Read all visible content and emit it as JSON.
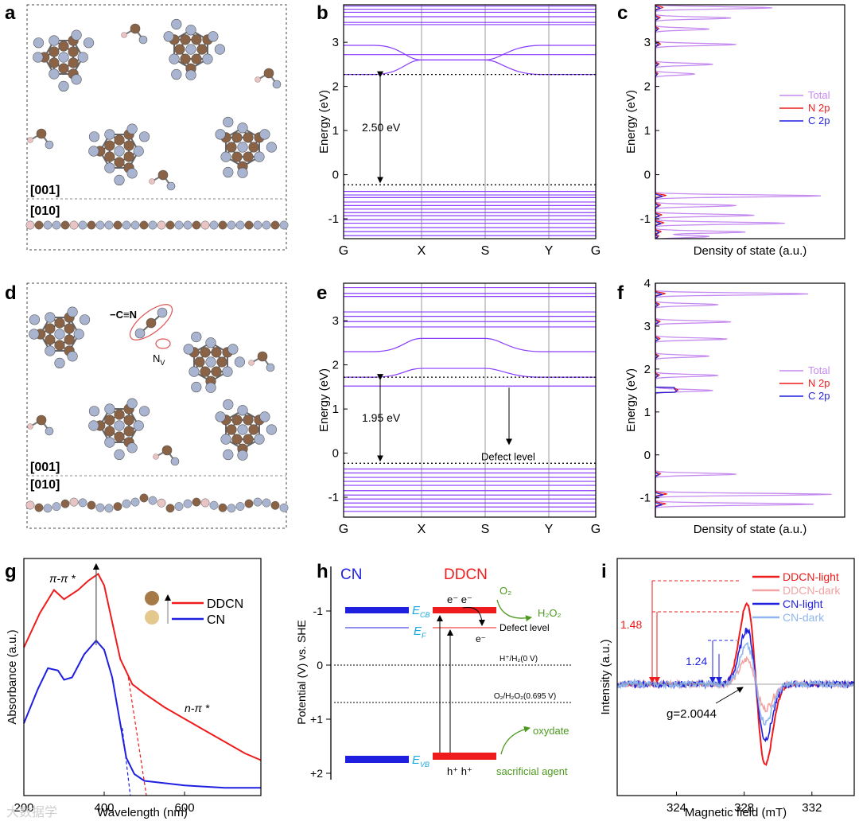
{
  "panel_labels": {
    "a": "a",
    "b": "b",
    "c": "c",
    "d": "d",
    "e": "e",
    "f": "f",
    "g": "g",
    "h": "h",
    "i": "i"
  },
  "colors": {
    "purple": "#8a3cff",
    "purple_light": "#c58af0",
    "red": "#ee1c1c",
    "blue": "#1f1fe0",
    "red_light": "#f2a3a3",
    "blue_light": "#8fb6ee",
    "carbon": "#8a6246",
    "nitrogen": "#a9b4d0",
    "hydrogen": "#e8c4c4",
    "cyan_text": "#1ba7df",
    "green_text": "#4d9a1f"
  },
  "panel_a": {
    "dir1": "[001]",
    "dir2": "[010]"
  },
  "panel_d": {
    "dir1": "[001]",
    "dir2": "[010]",
    "cyano": "−C≡N",
    "nv": "N",
    "nv_sub": "V"
  },
  "chart_data": [
    {
      "panel": "b",
      "type": "line",
      "subtype": "band_structure",
      "ylabel": "Energy (eV)",
      "x_ticks": [
        "G",
        "X",
        "S",
        "Y",
        "G"
      ],
      "y_ticks": [
        "-1",
        "0",
        "1",
        "2",
        "3"
      ],
      "ylim": [
        -1.45,
        3.85
      ],
      "gap_label": "2.50 eV",
      "vbm": -0.23,
      "cbm": 2.27,
      "flat_bands": [
        3.82,
        3.75,
        3.68,
        3.58,
        3.45,
        3.4,
        2.72,
        -0.38,
        -0.46,
        -0.52,
        -0.62,
        -0.7,
        -0.78,
        -0.86,
        -0.93,
        -1.02,
        -1.1,
        -1.2,
        -1.29,
        -1.38
      ],
      "dispersive_bands": [
        {
          "ends": 2.93,
          "mid": 2.6
        },
        {
          "ends": 2.27,
          "mid": 2.6
        }
      ]
    },
    {
      "panel": "c",
      "type": "line",
      "subtype": "density_of_states",
      "xlabel": "Density of state (a.u.)",
      "ylabel": "Energy (eV)",
      "y_ticks": [
        "-1",
        "0",
        "1",
        "2",
        "3"
      ],
      "ylim": [
        -1.45,
        3.85
      ],
      "legend": [
        "Total",
        "N 2p",
        "C 2p"
      ],
      "total_peaks": [
        [
          3.78,
          0.65
        ],
        [
          3.55,
          0.42
        ],
        [
          3.3,
          0.3
        ],
        [
          2.95,
          0.45
        ],
        [
          2.5,
          0.32
        ],
        [
          2.28,
          0.22
        ],
        [
          -0.48,
          0.92
        ],
        [
          -0.7,
          0.45
        ],
        [
          -0.92,
          0.55
        ],
        [
          -1.1,
          0.72
        ],
        [
          -1.3,
          0.5
        ],
        [
          -1.4,
          0.3
        ]
      ]
    },
    {
      "panel": "e",
      "type": "line",
      "subtype": "band_structure",
      "ylabel": "Energy (eV)",
      "x_ticks": [
        "G",
        "X",
        "S",
        "Y",
        "G"
      ],
      "y_ticks": [
        "-1",
        "0",
        "1",
        "2",
        "3"
      ],
      "ylim": [
        -1.45,
        3.85
      ],
      "gap_label": "1.95 eV",
      "defect_label": "Defect level",
      "vbm": -0.23,
      "cbm": 1.72,
      "defect_band": 1.52,
      "flat_bands": [
        3.75,
        3.62,
        3.55,
        3.2,
        3.1,
        2.98,
        2.86,
        1.52,
        -0.36,
        -0.45,
        -0.55,
        -0.64,
        -0.73,
        -0.85,
        -0.95,
        -1.04,
        -1.13,
        -1.22,
        -1.32
      ],
      "dispersive_bands": [
        {
          "ends": 2.3,
          "mid": 2.6
        },
        {
          "ends": 1.72,
          "mid": 1.92
        }
      ]
    },
    {
      "panel": "f",
      "type": "line",
      "subtype": "density_of_states",
      "xlabel": "Density of state (a.u.)",
      "ylabel": "Energy (eV)",
      "y_ticks": [
        "-1",
        "0",
        "1",
        "2",
        "3",
        "4"
      ],
      "ylim": [
        -1.45,
        4.0
      ],
      "legend": [
        "Total",
        "N 2p",
        "C 2p"
      ],
      "total_peaks": [
        [
          3.75,
          0.85
        ],
        [
          3.5,
          0.35
        ],
        [
          3.1,
          0.42
        ],
        [
          2.7,
          0.4
        ],
        [
          2.3,
          0.3
        ],
        [
          1.85,
          0.35
        ],
        [
          1.5,
          0.32
        ],
        [
          -0.45,
          0.45
        ],
        [
          -0.92,
          0.98
        ],
        [
          -1.15,
          0.88
        ]
      ]
    },
    {
      "panel": "g",
      "type": "line",
      "xlabel": "Wavelength (nm)",
      "ylabel": "Absorbance (a.u.)",
      "x_ticks": [
        "200",
        "400",
        "600"
      ],
      "xlim": [
        200,
        790
      ],
      "series": [
        {
          "name": "DDCN",
          "x": [
            200,
            240,
            275,
            300,
            335,
            360,
            385,
            400,
            420,
            440,
            470,
            500,
            550,
            600,
            650,
            700,
            750,
            790
          ],
          "y": [
            0.63,
            0.78,
            0.88,
            0.84,
            0.88,
            0.92,
            0.95,
            0.9,
            0.74,
            0.58,
            0.47,
            0.43,
            0.37,
            0.32,
            0.27,
            0.22,
            0.17,
            0.14
          ]
        },
        {
          "name": "CN",
          "x": [
            200,
            235,
            260,
            285,
            300,
            320,
            350,
            380,
            400,
            420,
            440,
            455,
            475,
            500,
            550,
            600,
            650,
            700,
            790
          ],
          "y": [
            0.3,
            0.45,
            0.54,
            0.53,
            0.49,
            0.5,
            0.6,
            0.66,
            0.62,
            0.5,
            0.3,
            0.15,
            0.08,
            0.05,
            0.04,
            0.03,
            0.025,
            0.02,
            0.02
          ]
        }
      ],
      "annotations": [
        "π-π *",
        "n-π *"
      ]
    },
    {
      "panel": "i",
      "type": "line",
      "xlabel": "Magnetic field (mT)",
      "ylabel": "Intensity (a.u.)",
      "x_ticks": [
        "324",
        "328",
        "332"
      ],
      "xlim": [
        320.5,
        334.5
      ],
      "annotations": {
        "ratio_ddcn": "1.48",
        "ratio_cn": "1.24",
        "g_value": "g=2.0044"
      },
      "series": [
        {
          "name": "DDCN-light",
          "peak": 1.48
        },
        {
          "name": "DDCN-dark",
          "peak": 0.45
        },
        {
          "name": "CN-light",
          "peak": 1.0
        },
        {
          "name": "CN-dark",
          "peak": 0.7
        }
      ]
    }
  ],
  "panel_h": {
    "cn_title": "CN",
    "ddcn_title": "DDCN",
    "ylabel": "Potential (V) vs. SHE",
    "y_ticks": [
      "-1",
      "0",
      "+1",
      "+2"
    ],
    "ecb": "E",
    "ecb_sub": "CB",
    "ef": "E",
    "ef_sub": "F",
    "evb": "E",
    "evb_sub": "VB",
    "defect_label": "Defect level",
    "h_ref": "H⁺/H₂(0 V)",
    "o2_ref": "O₂/H₂O₂(0.695 V)",
    "electrons": "e⁻  e⁻",
    "electron_single": "e⁻",
    "holes": "h⁺  h⁺",
    "o2": "O₂",
    "h2o2": "H₂O₂",
    "oxydate": "oxydate",
    "sacrificial": "sacrificial agent"
  },
  "watermark": "大数据学"
}
